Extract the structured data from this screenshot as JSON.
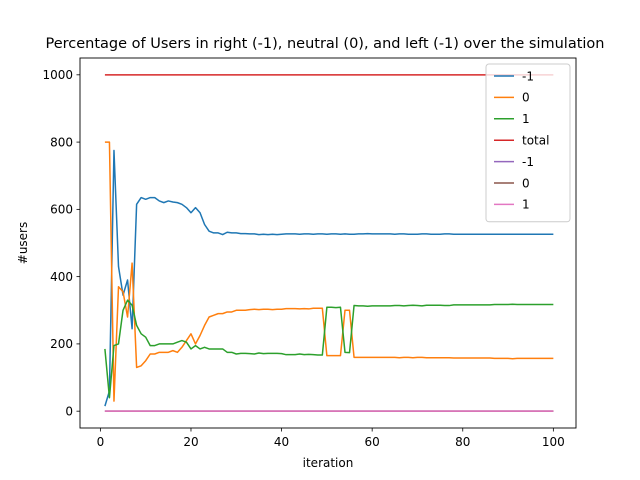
{
  "chart_data": {
    "type": "line",
    "title": "Percentage of Users in right (-1), neutral (0), and left (-1) over the simulation",
    "xlabel": "iteration",
    "ylabel": "#users",
    "xlim": [
      -4.5,
      105
    ],
    "ylim": [
      -50,
      1050
    ],
    "xticks": [
      0,
      20,
      40,
      60,
      80,
      100
    ],
    "yticks": [
      0,
      200,
      400,
      600,
      800,
      1000
    ],
    "legend_position": "top-right",
    "grid": false,
    "x": [
      1,
      2,
      3,
      4,
      5,
      6,
      7,
      8,
      9,
      10,
      11,
      12,
      13,
      14,
      15,
      16,
      17,
      18,
      19,
      20,
      21,
      22,
      23,
      24,
      25,
      26,
      27,
      28,
      29,
      30,
      31,
      32,
      33,
      34,
      35,
      36,
      37,
      38,
      39,
      40,
      41,
      42,
      43,
      44,
      45,
      46,
      47,
      48,
      49,
      50,
      51,
      52,
      53,
      54,
      55,
      56,
      57,
      58,
      59,
      60,
      61,
      62,
      63,
      64,
      65,
      66,
      67,
      68,
      69,
      70,
      71,
      72,
      73,
      74,
      75,
      76,
      77,
      78,
      79,
      80,
      81,
      82,
      83,
      84,
      85,
      86,
      87,
      88,
      89,
      90,
      91,
      92,
      93,
      94,
      95,
      96,
      97,
      98,
      99,
      100
    ],
    "series": [
      {
        "name": "-1",
        "color": "#1f77b4",
        "values": [
          15,
          60,
          775,
          430,
          345,
          390,
          245,
          615,
          635,
          630,
          635,
          635,
          625,
          620,
          625,
          622,
          620,
          615,
          605,
          590,
          605,
          590,
          555,
          535,
          530,
          530,
          525,
          532,
          530,
          530,
          528,
          528,
          527,
          527,
          525,
          526,
          525,
          526,
          525,
          526,
          527,
          527,
          527,
          526,
          527,
          527,
          526,
          527,
          527,
          526,
          527,
          527,
          526,
          527,
          526,
          526,
          527,
          527,
          528,
          527,
          527,
          527,
          527,
          527,
          526,
          527,
          527,
          526,
          526,
          526,
          527,
          527,
          526,
          526,
          526,
          527,
          527,
          526,
          526,
          526,
          526,
          526,
          526,
          526,
          526,
          526,
          526,
          526,
          526,
          526,
          526,
          526,
          526,
          526,
          526,
          526,
          526,
          526,
          526,
          526
        ]
      },
      {
        "name": "0",
        "color": "#ff7f0e",
        "values": [
          800,
          800,
          30,
          370,
          355,
          280,
          440,
          130,
          135,
          150,
          170,
          170,
          175,
          175,
          175,
          180,
          175,
          190,
          210,
          230,
          200,
          225,
          255,
          280,
          285,
          290,
          290,
          295,
          295,
          300,
          300,
          300,
          302,
          303,
          302,
          303,
          303,
          302,
          303,
          303,
          305,
          305,
          305,
          304,
          305,
          304,
          306,
          306,
          306,
          165,
          165,
          165,
          165,
          300,
          300,
          160,
          160,
          160,
          160,
          160,
          160,
          160,
          160,
          160,
          160,
          159,
          160,
          160,
          159,
          160,
          160,
          159,
          159,
          159,
          159,
          159,
          159,
          158,
          158,
          158,
          158,
          158,
          158,
          158,
          158,
          158,
          157,
          157,
          157,
          157,
          156,
          157,
          157,
          157,
          157,
          157,
          157,
          157,
          157,
          157
        ]
      },
      {
        "name": "1",
        "color": "#2ca02c",
        "values": [
          185,
          40,
          195,
          200,
          300,
          330,
          315,
          255,
          230,
          220,
          195,
          195,
          200,
          200,
          200,
          200,
          205,
          210,
          205,
          185,
          195,
          185,
          190,
          185,
          185,
          185,
          185,
          175,
          175,
          170,
          172,
          172,
          171,
          170,
          173,
          171,
          172,
          172,
          172,
          171,
          168,
          168,
          168,
          170,
          168,
          169,
          168,
          167,
          167,
          309,
          309,
          308,
          309,
          175,
          174,
          314,
          313,
          313,
          312,
          313,
          313,
          313,
          313,
          313,
          314,
          314,
          313,
          314,
          315,
          314,
          313,
          315,
          315,
          315,
          315,
          314,
          314,
          316,
          316,
          316,
          316,
          316,
          316,
          316,
          316,
          316,
          317,
          317,
          317,
          317,
          318,
          317,
          317,
          317,
          317,
          317,
          317,
          317,
          317,
          317
        ]
      },
      {
        "name": "total",
        "color": "#d62728",
        "values": [
          1000,
          1000,
          1000,
          1000,
          1000,
          1000,
          1000,
          1000,
          1000,
          1000,
          1000,
          1000,
          1000,
          1000,
          1000,
          1000,
          1000,
          1000,
          1000,
          1000,
          1000,
          1000,
          1000,
          1000,
          1000,
          1000,
          1000,
          1000,
          1000,
          1000,
          1000,
          1000,
          1000,
          1000,
          1000,
          1000,
          1000,
          1000,
          1000,
          1000,
          1000,
          1000,
          1000,
          1000,
          1000,
          1000,
          1000,
          1000,
          1000,
          1000,
          1000,
          1000,
          1000,
          1000,
          1000,
          1000,
          1000,
          1000,
          1000,
          1000,
          1000,
          1000,
          1000,
          1000,
          1000,
          1000,
          1000,
          1000,
          1000,
          1000,
          1000,
          1000,
          1000,
          1000,
          1000,
          1000,
          1000,
          1000,
          1000,
          1000,
          1000,
          1000,
          1000,
          1000,
          1000,
          1000,
          1000,
          1000,
          1000,
          1000,
          1000,
          1000,
          1000,
          1000,
          1000,
          1000,
          1000,
          1000,
          1000,
          1000
        ]
      },
      {
        "name": "-1",
        "color": "#9467bd",
        "values": [
          0,
          0,
          0,
          0,
          0,
          0,
          0,
          0,
          0,
          0,
          0,
          0,
          0,
          0,
          0,
          0,
          0,
          0,
          0,
          0,
          0,
          0,
          0,
          0,
          0,
          0,
          0,
          0,
          0,
          0,
          0,
          0,
          0,
          0,
          0,
          0,
          0,
          0,
          0,
          0,
          0,
          0,
          0,
          0,
          0,
          0,
          0,
          0,
          0,
          0,
          0,
          0,
          0,
          0,
          0,
          0,
          0,
          0,
          0,
          0,
          0,
          0,
          0,
          0,
          0,
          0,
          0,
          0,
          0,
          0,
          0,
          0,
          0,
          0,
          0,
          0,
          0,
          0,
          0,
          0,
          0,
          0,
          0,
          0,
          0,
          0,
          0,
          0,
          0,
          0,
          0,
          0,
          0,
          0,
          0,
          0,
          0,
          0,
          0,
          0
        ]
      },
      {
        "name": "0",
        "color": "#8c564b",
        "values": [
          0,
          0,
          0,
          0,
          0,
          0,
          0,
          0,
          0,
          0,
          0,
          0,
          0,
          0,
          0,
          0,
          0,
          0,
          0,
          0,
          0,
          0,
          0,
          0,
          0,
          0,
          0,
          0,
          0,
          0,
          0,
          0,
          0,
          0,
          0,
          0,
          0,
          0,
          0,
          0,
          0,
          0,
          0,
          0,
          0,
          0,
          0,
          0,
          0,
          0,
          0,
          0,
          0,
          0,
          0,
          0,
          0,
          0,
          0,
          0,
          0,
          0,
          0,
          0,
          0,
          0,
          0,
          0,
          0,
          0,
          0,
          0,
          0,
          0,
          0,
          0,
          0,
          0,
          0,
          0,
          0,
          0,
          0,
          0,
          0,
          0,
          0,
          0,
          0,
          0,
          0,
          0,
          0,
          0,
          0,
          0,
          0,
          0,
          0,
          0
        ]
      },
      {
        "name": "1",
        "color": "#e377c2",
        "values": [
          0,
          0,
          0,
          0,
          0,
          0,
          0,
          0,
          0,
          0,
          0,
          0,
          0,
          0,
          0,
          0,
          0,
          0,
          0,
          0,
          0,
          0,
          0,
          0,
          0,
          0,
          0,
          0,
          0,
          0,
          0,
          0,
          0,
          0,
          0,
          0,
          0,
          0,
          0,
          0,
          0,
          0,
          0,
          0,
          0,
          0,
          0,
          0,
          0,
          0,
          0,
          0,
          0,
          0,
          0,
          0,
          0,
          0,
          0,
          0,
          0,
          0,
          0,
          0,
          0,
          0,
          0,
          0,
          0,
          0,
          0,
          0,
          0,
          0,
          0,
          0,
          0,
          0,
          0,
          0,
          0,
          0,
          0,
          0,
          0,
          0,
          0,
          0,
          0,
          0,
          0,
          0,
          0,
          0,
          0,
          0,
          0,
          0,
          0,
          0
        ]
      }
    ]
  }
}
